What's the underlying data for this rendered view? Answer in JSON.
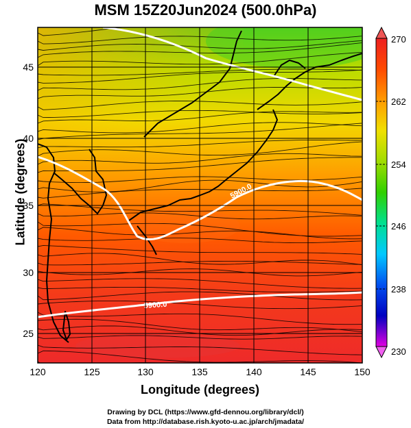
{
  "title": "MSM 15Z20Jun2024 (500.0hPa)",
  "axes": {
    "xlabel": "Longitude (degrees)",
    "ylabel": "Latitude  (degrees)",
    "x_ticks": [
      "120",
      "125",
      "130",
      "135",
      "140",
      "145",
      "150"
    ],
    "y_ticks": [
      "25",
      "30",
      "35",
      "40",
      "45"
    ],
    "x_range": [
      120,
      150
    ],
    "y_range": [
      22.5,
      47.5
    ]
  },
  "colorbar": {
    "labels": [
      "270",
      "262",
      "254",
      "246",
      "238",
      "230"
    ],
    "range": [
      230,
      270
    ],
    "colors": [
      "#e000e0",
      "#7000d0",
      "#0000c0",
      "#0050f0",
      "#00c8ff",
      "#00e090",
      "#30d000",
      "#a0dc00",
      "#f0e000",
      "#ff9a00",
      "#ff4a00",
      "#ee2020"
    ]
  },
  "contours": [
    {
      "value_label": "5900.0",
      "color": "#ffffff"
    },
    {
      "value_label": "5900.0",
      "color": "#ffffff"
    }
  ],
  "credits": {
    "line1": "Drawing by DCL (https://www.gfd-dennou.org/library/dcl/)",
    "line2": "Data from http://database.rish.kyoto-u.ac.jp/arch/jmadata/"
  }
}
